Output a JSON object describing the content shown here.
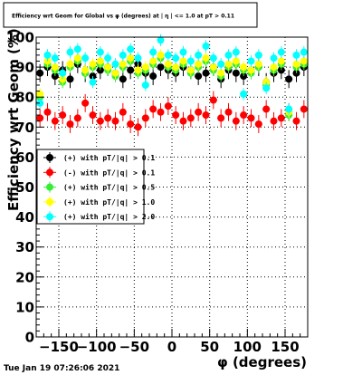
{
  "chart_data": {
    "type": "scatter",
    "title": "Efficiency wrt Geom for Global vs φ (degrees) at | η | <= 1.0 at pT > 0.11",
    "xlabel": "φ (degrees)",
    "ylabel": "Efficiency wrt Geom (%)",
    "xlim": [
      -180,
      180
    ],
    "ylim": [
      0,
      100
    ],
    "x_ticks": [
      -150,
      -100,
      -50,
      0,
      50,
      100,
      150
    ],
    "x_tick_labels": [
      "−150",
      "−100",
      "−50",
      "0",
      "50",
      "100",
      "150"
    ],
    "y_ticks": [
      0,
      10,
      20,
      30,
      40,
      50,
      60,
      70,
      80,
      90,
      100
    ],
    "grid": true,
    "legend_position": "middle-left",
    "timestamp": "Tue Jan 19 07:26:06 2021",
    "series": [
      {
        "name": "(+) with pT/|q| > 0.1",
        "color": "#000000",
        "y_error": 3,
        "x": [
          -175,
          -165,
          -155,
          -145,
          -135,
          -125,
          -115,
          -105,
          -95,
          -85,
          -75,
          -65,
          -55,
          -45,
          -35,
          -25,
          -15,
          -5,
          5,
          15,
          25,
          35,
          45,
          55,
          65,
          75,
          85,
          95,
          105,
          115,
          125,
          135,
          145,
          155,
          165,
          175
        ],
        "values": [
          88,
          90,
          87,
          89,
          86,
          91,
          88,
          87,
          89,
          90,
          88,
          86,
          89,
          91,
          88,
          87,
          90,
          89,
          88,
          90,
          89,
          87,
          88,
          90,
          86,
          89,
          88,
          87,
          89,
          90,
          85,
          88,
          89,
          86,
          88,
          90
        ]
      },
      {
        "name": "(-) with pT/|q| > 0.1",
        "color": "#ff0000",
        "y_error": 3,
        "x": [
          -175,
          -165,
          -155,
          -145,
          -135,
          -125,
          -115,
          -105,
          -95,
          -85,
          -75,
          -65,
          -55,
          -45,
          -35,
          -25,
          -15,
          -5,
          5,
          15,
          25,
          35,
          45,
          55,
          65,
          75,
          85,
          95,
          105,
          115,
          125,
          135,
          145,
          155,
          165,
          175
        ],
        "values": [
          73,
          75,
          72,
          74,
          71,
          73,
          78,
          74,
          72,
          73,
          72,
          75,
          71,
          70,
          73,
          76,
          75,
          77,
          74,
          72,
          73,
          75,
          74,
          79,
          73,
          75,
          72,
          74,
          73,
          71,
          76,
          72,
          73,
          75,
          72,
          76
        ]
      },
      {
        "name": "(+) with pT/|q| > 0.5",
        "color": "#33ee33",
        "y_error": 2,
        "x": [
          -175,
          -165,
          -155,
          -145,
          -135,
          -125,
          -115,
          -105,
          -95,
          -85,
          -75,
          -65,
          -55,
          -45,
          -35,
          -25,
          -15,
          -5,
          5,
          15,
          25,
          35,
          45,
          55,
          65,
          75,
          85,
          95,
          105,
          115,
          125,
          135,
          145,
          155,
          165,
          175
        ],
        "values": [
          80,
          91,
          89,
          85,
          90,
          92,
          88,
          90,
          91,
          89,
          87,
          90,
          92,
          88,
          89,
          91,
          93,
          90,
          89,
          91,
          88,
          90,
          92,
          89,
          87,
          90,
          91,
          89,
          88,
          90,
          84,
          89,
          91,
          74,
          90,
          91
        ]
      },
      {
        "name": "(+) with pT/|q| > 1.0",
        "color": "#ffff00",
        "y_error": 2,
        "x": [
          -175,
          -165,
          -155,
          -145,
          -135,
          -125,
          -115,
          -105,
          -95,
          -85,
          -75,
          -65,
          -55,
          -45,
          -35,
          -25,
          -15,
          -5,
          5,
          15,
          25,
          35,
          45,
          55,
          65,
          75,
          85,
          95,
          105,
          115,
          125,
          135,
          145,
          155,
          165,
          175
        ],
        "values": [
          81,
          92,
          90,
          86,
          91,
          93,
          89,
          91,
          92,
          90,
          88,
          91,
          93,
          89,
          90,
          92,
          94,
          91,
          90,
          92,
          89,
          91,
          93,
          90,
          88,
          91,
          92,
          90,
          89,
          91,
          85,
          90,
          92,
          75,
          91,
          92
        ]
      },
      {
        "name": "(+) with pT/|q| > 2.0",
        "color": "#00ffff",
        "y_error": 2,
        "x": [
          -175,
          -165,
          -155,
          -145,
          -135,
          -125,
          -115,
          -105,
          -95,
          -85,
          -75,
          -65,
          -55,
          -45,
          -35,
          -25,
          -15,
          -5,
          5,
          15,
          25,
          35,
          45,
          55,
          65,
          75,
          85,
          95,
          105,
          115,
          125,
          135,
          145,
          155,
          165,
          175
        ],
        "values": [
          78,
          94,
          93,
          88,
          95,
          96,
          93,
          85,
          95,
          93,
          91,
          94,
          96,
          93,
          84,
          95,
          99,
          94,
          93,
          95,
          92,
          94,
          97,
          93,
          91,
          94,
          95,
          81,
          92,
          94,
          83,
          93,
          95,
          76,
          94,
          95
        ]
      }
    ]
  }
}
